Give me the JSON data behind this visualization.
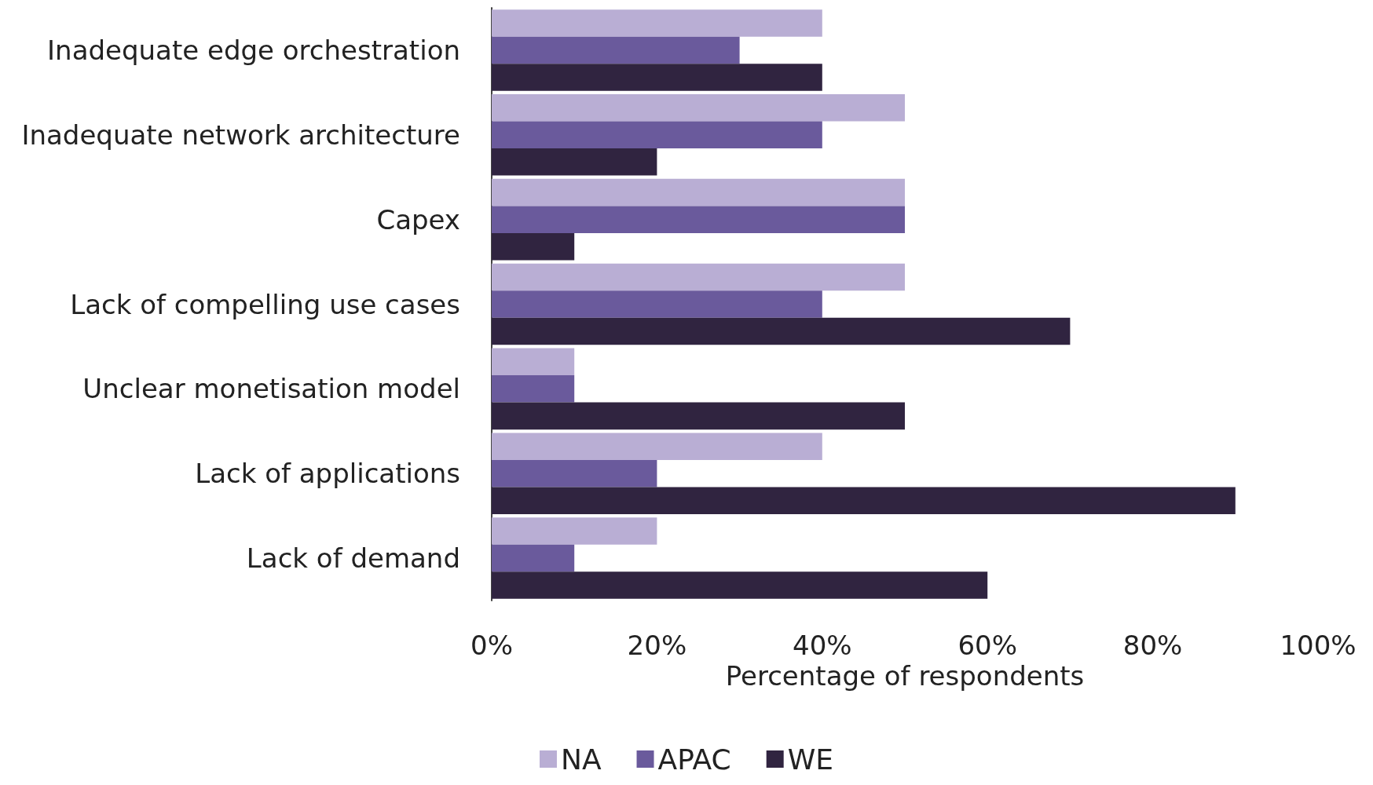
{
  "chart_data": {
    "type": "bar",
    "orientation": "horizontal",
    "xlabel": "Percentage of respondents",
    "categories": [
      "Inadequate edge orchestration",
      "Inadequate network architecture",
      "Capex",
      "Lack of compelling use cases",
      "Unclear monetisation model",
      "Lack of applications",
      "Lack of demand"
    ],
    "series": [
      {
        "name": "NA",
        "color": "#b9aed4",
        "values": [
          40,
          50,
          50,
          50,
          10,
          40,
          20
        ]
      },
      {
        "name": "APAC",
        "color": "#6a5a9c",
        "values": [
          30,
          40,
          50,
          40,
          10,
          20,
          10
        ]
      },
      {
        "name": "WE",
        "color": "#302440",
        "values": [
          40,
          20,
          10,
          70,
          50,
          90,
          60
        ]
      }
    ],
    "xlim": [
      0,
      100
    ],
    "xticks": [
      {
        "value": 0,
        "label": "0%"
      },
      {
        "value": 20,
        "label": "20%"
      },
      {
        "value": 40,
        "label": "40%"
      },
      {
        "value": 60,
        "label": "60%"
      },
      {
        "value": 80,
        "label": "80%"
      },
      {
        "value": 100,
        "label": "100%"
      }
    ],
    "grid": false,
    "legend": "bottom"
  }
}
